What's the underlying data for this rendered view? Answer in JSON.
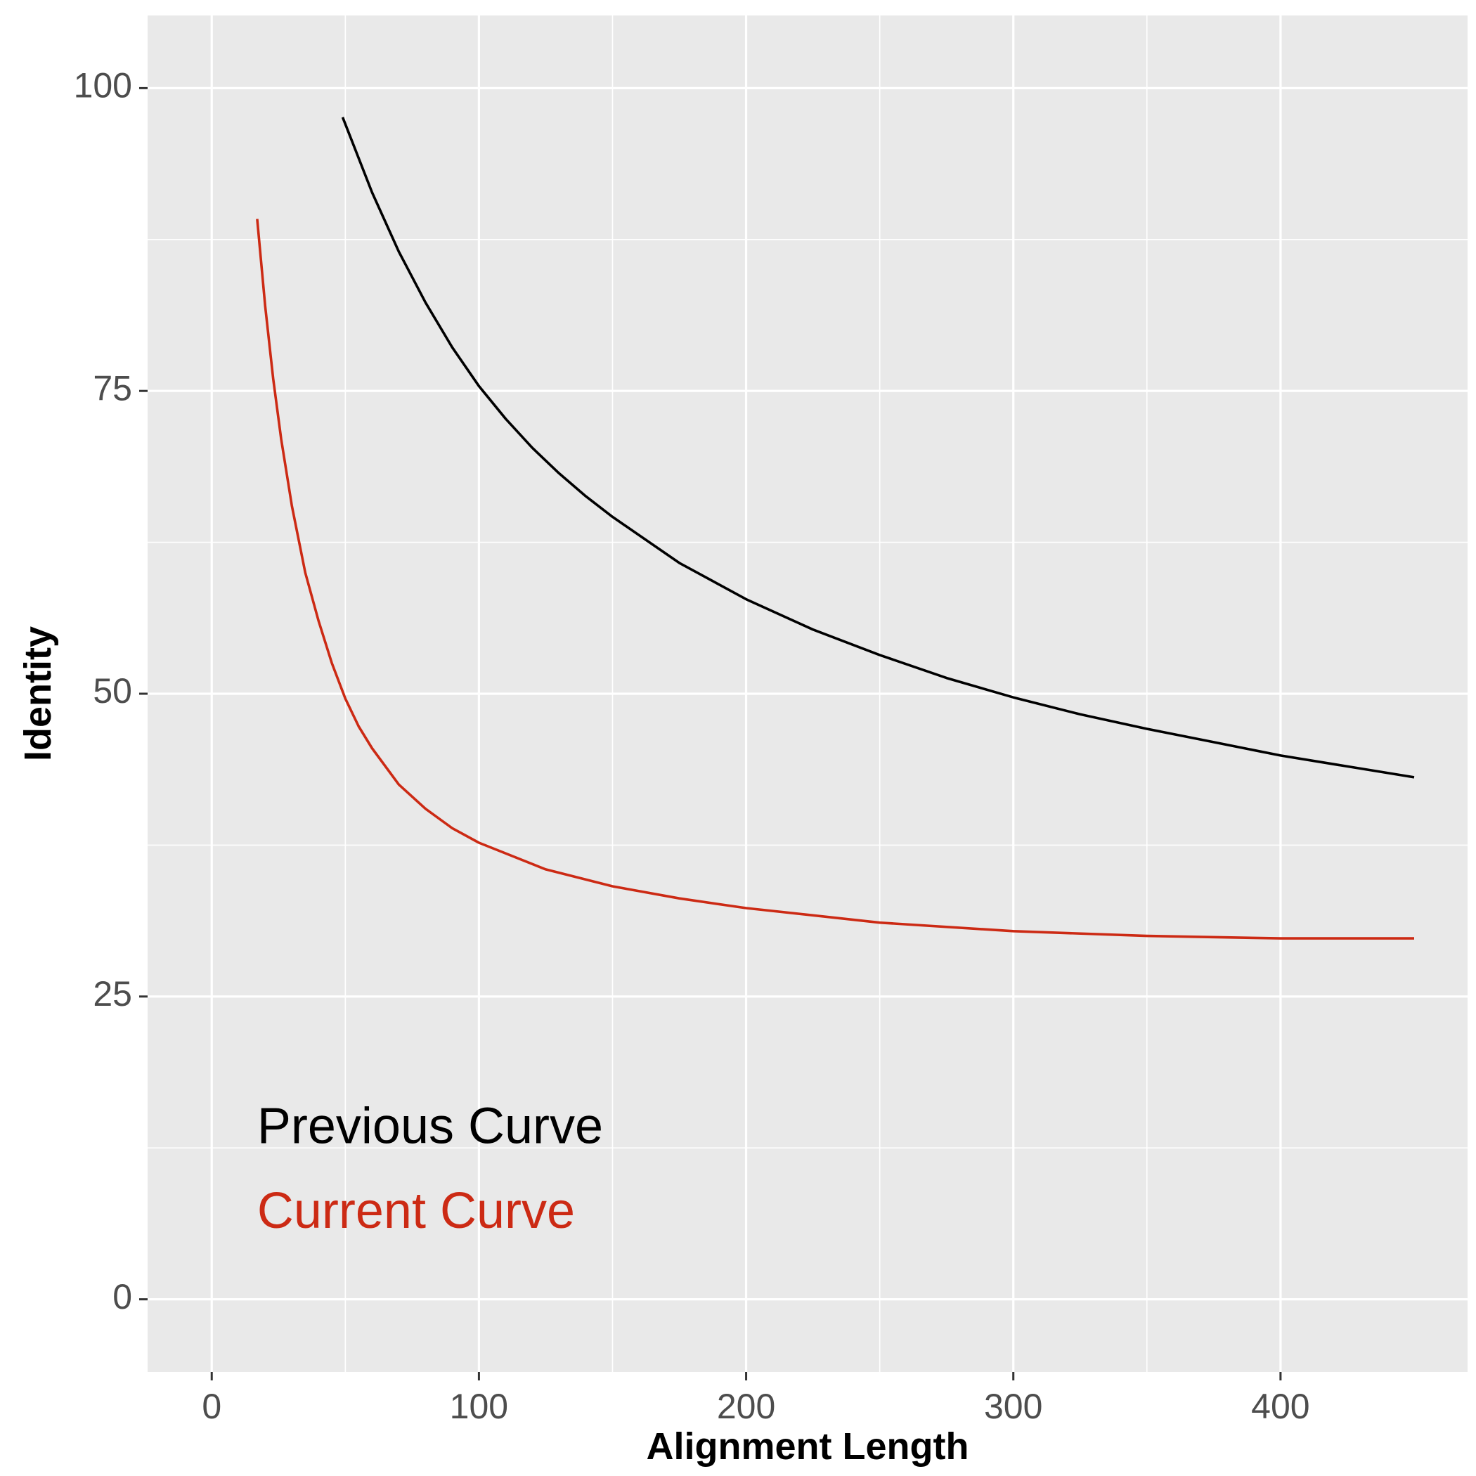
{
  "chart_data": {
    "type": "line",
    "xlabel": "Alignment Length",
    "ylabel": "Identity",
    "xlim": [
      -24,
      470
    ],
    "ylim": [
      -6,
      106
    ],
    "x_ticks": [
      0,
      100,
      200,
      300,
      400
    ],
    "x_tick_labels": [
      "0",
      "100",
      "200",
      "300",
      "400"
    ],
    "x_minor_ticks": [
      50,
      150,
      250,
      350
    ],
    "y_ticks": [
      0,
      25,
      50,
      75,
      100
    ],
    "y_tick_labels": [
      "0",
      "25",
      "50",
      "75",
      "100"
    ],
    "y_minor_ticks": [
      12.5,
      37.5,
      62.5,
      87.5
    ],
    "grid": true,
    "background": "#e9e9e9",
    "series": [
      {
        "name": "Previous Curve",
        "color": "#000000",
        "x": [
          49,
          60,
          70,
          80,
          90,
          100,
          110,
          120,
          130,
          140,
          150,
          175,
          200,
          225,
          250,
          275,
          300,
          325,
          350,
          375,
          400,
          425,
          450
        ],
        "y": [
          97.6,
          91.4,
          86.5,
          82.3,
          78.6,
          75.4,
          72.7,
          70.3,
          68.2,
          66.3,
          64.6,
          60.8,
          57.8,
          55.3,
          53.2,
          51.3,
          49.7,
          48.3,
          47.1,
          46.0,
          44.9,
          44.0,
          43.1
        ]
      },
      {
        "name": "Current Curve",
        "color": "#cc2a14",
        "x": [
          17,
          20,
          23,
          26,
          30,
          35,
          40,
          45,
          50,
          55,
          60,
          70,
          80,
          90,
          100,
          125,
          150,
          175,
          200,
          250,
          300,
          350,
          400,
          450
        ],
        "y": [
          89.2,
          82.0,
          76.0,
          71.0,
          65.5,
          60.0,
          56.0,
          52.5,
          49.6,
          47.3,
          45.5,
          42.5,
          40.5,
          38.9,
          37.7,
          35.5,
          34.1,
          33.1,
          32.3,
          31.1,
          30.4,
          30.0,
          29.8,
          29.8
        ]
      }
    ],
    "annotations": [
      {
        "text": "Previous Curve",
        "color": "#000000",
        "x": 17,
        "y": 14
      },
      {
        "text": "Current Curve",
        "color": "#cc2a14",
        "x": 17,
        "y": 7
      }
    ]
  }
}
